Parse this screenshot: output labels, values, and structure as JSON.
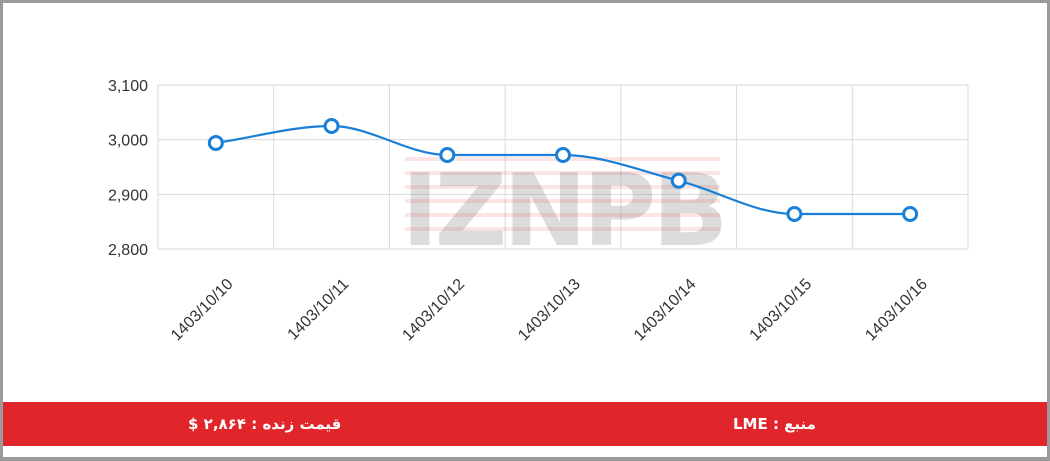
{
  "chart_data": {
    "type": "line",
    "categories": [
      "1403/10/10",
      "1403/10/11",
      "1403/10/12",
      "1403/10/13",
      "1403/10/14",
      "1403/10/15",
      "1403/10/16"
    ],
    "series": [
      {
        "values": [
          2994,
          3025,
          2972,
          2972,
          2925,
          2864,
          2864
        ]
      }
    ],
    "yticks": [
      "2,800",
      "2,900",
      "3,000",
      "3,100"
    ],
    "ylim": [
      2800,
      3100
    ],
    "grid": true,
    "title": "",
    "xlabel": "",
    "ylabel": "",
    "colors": {
      "line": "#1a7fd6",
      "grid": "#d9d9d9"
    }
  },
  "watermark": {
    "text": "IZNPB"
  },
  "footer": {
    "live_price": "قیمت زنده : ۲,۸۶۴ $",
    "source": "منبع : LME",
    "color": "#e0262b"
  }
}
